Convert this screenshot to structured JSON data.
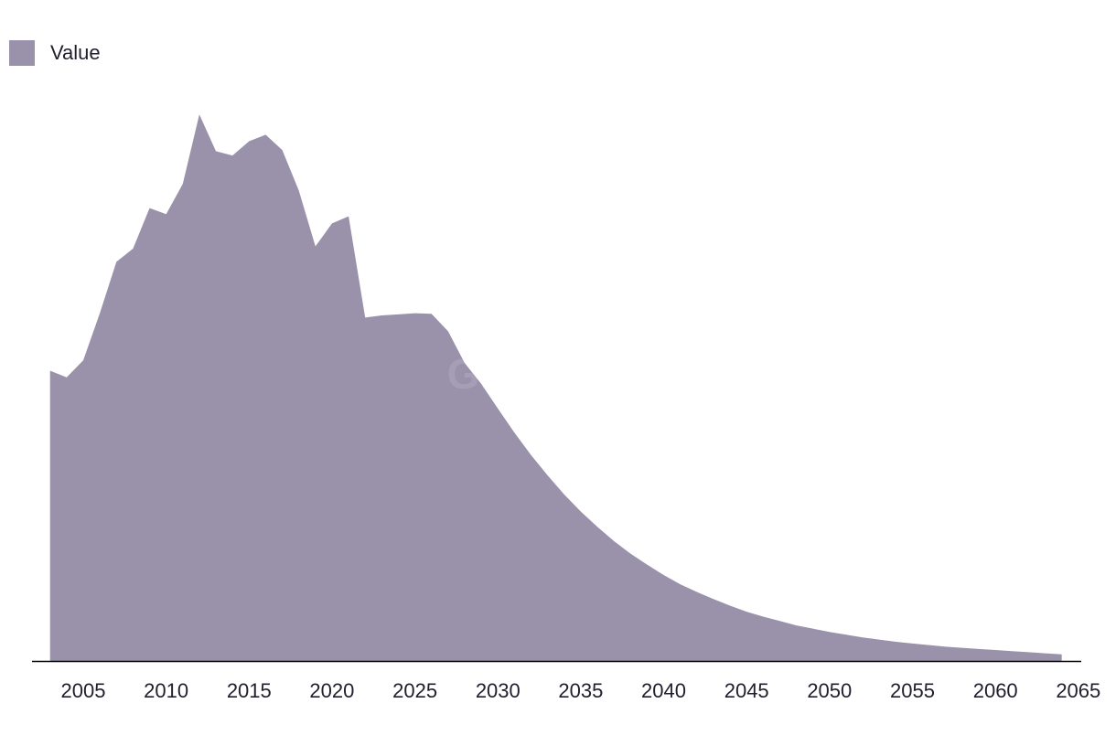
{
  "watermark": "GlobalData",
  "colors": {
    "area": "#9a91aa",
    "axis": "#000000",
    "text": "#1f1f2e"
  },
  "chart_data": {
    "type": "area",
    "title": "",
    "xlabel": "",
    "ylabel": "",
    "legend": {
      "position": "top-left",
      "entries": [
        "Value"
      ]
    },
    "grid": false,
    "y_axis_labels_shown": false,
    "xlim": [
      2002.3,
      2065.0
    ],
    "ylim": [
      0,
      100
    ],
    "x_ticks": [
      2005,
      2010,
      2015,
      2020,
      2025,
      2030,
      2035,
      2040,
      2045,
      2050,
      2055,
      2060,
      2065
    ],
    "series": [
      {
        "name": "Value",
        "x": [
          2003,
          2004,
          2005,
          2006,
          2007,
          2008,
          2009,
          2010,
          2011,
          2012,
          2013,
          2014,
          2015,
          2016,
          2017,
          2018,
          2019,
          2020,
          2021,
          2022,
          2023,
          2024,
          2025,
          2026,
          2027,
          2028,
          2029,
          2030,
          2031,
          2032,
          2033,
          2034,
          2035,
          2036,
          2037,
          2038,
          2039,
          2040,
          2041,
          2042,
          2043,
          2044,
          2045,
          2046,
          2047,
          2048,
          2049,
          2050,
          2051,
          2052,
          2053,
          2054,
          2055,
          2056,
          2057,
          2058,
          2059,
          2060,
          2061,
          2062,
          2063,
          2064
        ],
        "values": [
          53.0,
          51.8,
          54.9,
          63.5,
          72.9,
          75.3,
          82.7,
          81.6,
          87.1,
          99.8,
          93.1,
          92.3,
          94.9,
          96.1,
          93.3,
          85.9,
          75.7,
          79.9,
          81.2,
          62.7,
          63.1,
          63.3,
          63.5,
          63.4,
          60.2,
          54.4,
          50.6,
          46.1,
          41.7,
          37.6,
          33.9,
          30.4,
          27.3,
          24.5,
          21.9,
          19.6,
          17.6,
          15.7,
          14.0,
          12.6,
          11.3,
          10.1,
          9.0,
          8.1,
          7.3,
          6.5,
          5.9,
          5.3,
          4.8,
          4.3,
          3.9,
          3.5,
          3.2,
          2.9,
          2.6,
          2.4,
          2.2,
          2.0,
          1.8,
          1.6,
          1.4,
          1.2
        ]
      }
    ]
  }
}
